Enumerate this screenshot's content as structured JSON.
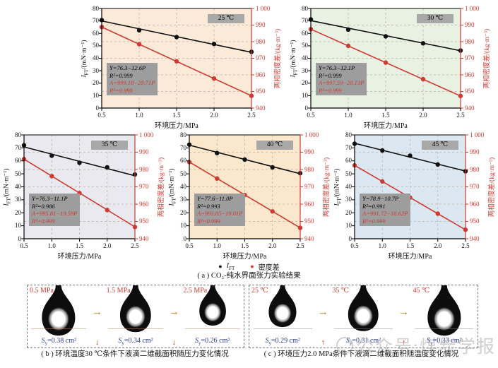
{
  "colors": {
    "red": "#cf3a32",
    "black": "#111111",
    "box_gray": "#9d9d9d",
    "badge_gray": "#a8a8a8",
    "grid": "#bdb3a6",
    "blue": "#2b3a8f",
    "orange_arrow": "#e0761f"
  },
  "axes": {
    "xlabel": "环境压力/MPa",
    "ylabel_left_sym": "I",
    "ylabel_left_sub": "FT",
    "ylabel_left_rest": "/(mN·m⁻¹)",
    "ylabel_right": "两相密度差/(kg·m⁻³)",
    "x_ticks": [
      "0.5",
      "1.0",
      "1.5",
      "2.0",
      "2.5"
    ],
    "y_left_ticks": [
      "0",
      "10",
      "20",
      "30",
      "40",
      "50",
      "60",
      "70",
      "80"
    ],
    "y_right_ticks": [
      "940",
      "950",
      "960",
      "970",
      "980",
      "990",
      "1 000"
    ],
    "x_range": [
      0.5,
      2.5
    ],
    "y_left_range": [
      0,
      80
    ],
    "y_right_range": [
      940,
      1000
    ]
  },
  "legend": {
    "marker": "●",
    "series1_sym": "I",
    "series1_sub": "FT",
    "series2": "密度差"
  },
  "chart_data": [
    {
      "type": "line",
      "temperature": "25 ℃",
      "bg": "#fcead9",
      "x": [
        0.5,
        1.0,
        1.5,
        2.0,
        2.5
      ],
      "series": [
        {
          "name": "IFT",
          "axis": "left",
          "color": "#111111",
          "values": [
            70.7,
            62.5,
            57.0,
            51.5,
            45.2
          ],
          "fit": {
            "intercept": 76.3,
            "slope": -12.6
          },
          "eq": "Y=76.3−12.6P",
          "r2": "R²=0.999"
        },
        {
          "name": "密度差",
          "axis": "right",
          "color": "#cf3a32",
          "values": [
            988.8,
            978.5,
            968.2,
            957.8,
            947.4
          ],
          "fit": {
            "intercept": 999.18,
            "slope": -20.71
          },
          "eq": "A=999.18−20.71P",
          "r2": "R²=0.998"
        }
      ]
    },
    {
      "type": "line",
      "temperature": "30 ℃",
      "bg": "#e9f2e2",
      "x": [
        0.5,
        1.0,
        1.5,
        2.0,
        2.5
      ],
      "series": [
        {
          "name": "IFT",
          "axis": "left",
          "color": "#111111",
          "values": [
            71.2,
            63.0,
            57.6,
            52.0,
            46.2
          ],
          "fit": {
            "intercept": 76.3,
            "slope": -12.1
          },
          "eq": "Y=76.3−12.1P",
          "r2": "R²=0.999"
        },
        {
          "name": "密度差",
          "axis": "right",
          "color": "#cf3a32",
          "values": [
            987.5,
            977.5,
            967.4,
            957.4,
            947.3
          ],
          "fit": {
            "intercept": 997.59,
            "slope": -20.13
          },
          "eq": "A=997.59−20.13P",
          "r2": "R²=0.999"
        }
      ]
    },
    {
      "type": "line",
      "temperature": "35 ℃",
      "bg": "#eae9ef",
      "x": [
        0.5,
        1.0,
        1.5,
        2.0,
        2.5
      ],
      "series": [
        {
          "name": "IFT",
          "axis": "left",
          "color": "#111111",
          "values": [
            72.0,
            64.0,
            58.5,
            55.0,
            49.5
          ],
          "fit": {
            "intercept": 76.3,
            "slope": -11.1
          },
          "eq": "Y=76.3−11.1P",
          "r2": "R²=0.986"
        },
        {
          "name": "密度差",
          "axis": "right",
          "color": "#cf3a32",
          "values": [
            986.0,
            976.2,
            966.4,
            956.6,
            946.8
          ],
          "fit": {
            "intercept": 995.81,
            "slope": -19.59
          },
          "eq": "A=995.81−19.59P",
          "r2": "R²=0.999"
        }
      ]
    },
    {
      "type": "line",
      "temperature": "40 ℃",
      "bg": "#fbe7cc",
      "x": [
        0.5,
        1.0,
        1.5,
        2.0,
        2.5
      ],
      "series": [
        {
          "name": "IFT",
          "axis": "left",
          "color": "#111111",
          "values": [
            72.5,
            66.0,
            61.0,
            55.0,
            50.5
          ],
          "fit": {
            "intercept": 77.6,
            "slope": -11.0
          },
          "eq": "Y=77.6−11.0P",
          "r2": "R²=0.993"
        },
        {
          "name": "密度差",
          "axis": "right",
          "color": "#cf3a32",
          "values": [
            984.3,
            974.8,
            965.3,
            955.8,
            946.3
          ],
          "fit": {
            "intercept": 993.85,
            "slope": -19.01
          },
          "eq": "A=993.85−19.01P",
          "r2": "R²=0.999"
        }
      ]
    },
    {
      "type": "line",
      "temperature": "45 ℃",
      "bg": "#dce8f1",
      "x": [
        0.5,
        1.0,
        1.5,
        2.0,
        2.5
      ],
      "series": [
        {
          "name": "IFT",
          "axis": "left",
          "color": "#111111",
          "values": [
            73.2,
            68.0,
            64.0,
            57.2,
            52.0
          ],
          "fit": {
            "intercept": 78.9,
            "slope": -10.7
          },
          "eq": "Y=78.9−10.7P",
          "r2": "R²=0.991"
        },
        {
          "name": "密度差",
          "axis": "right",
          "color": "#cf3a32",
          "values": [
            982.4,
            973.1,
            963.8,
            954.5,
            945.2
          ],
          "fit": {
            "intercept": 991.72,
            "slope": -18.62
          },
          "eq": "A=991.72−18.62P",
          "r2": "R²=0.999"
        }
      ]
    }
  ],
  "figure": {
    "caption_a": "( a ) CO₂-纯水界面张力实验结果",
    "caption_b": "( b ) 环境温度30 ℃条件下液滴二维截面积随压力变化情况",
    "caption_c": "( c ) 环境压力2.0 MPa条件下液滴二维截面积随温度变化情况",
    "watermark": "公众号:煤炭学报"
  },
  "panels": {
    "s_symbol": "S",
    "s_sub": "y",
    "b": {
      "between_arrow": "→",
      "trend_arrow": "↓",
      "items": [
        {
          "label": "0.5 MPa",
          "area": "=0.38 cm²",
          "size": "1.0"
        },
        {
          "label": "1.5 MPa",
          "area": "=0.34 cm²",
          "size": "0.93"
        },
        {
          "label": "2.5 MPa",
          "area": "=0.26 cm²",
          "size": "0.80"
        }
      ]
    },
    "c": {
      "between_arrow": "→",
      "trend_arrow": "↑",
      "items": [
        {
          "label": "25 ℃",
          "area": "=0.29 cm²",
          "size": "0.83"
        },
        {
          "label": "35 ℃",
          "area": "=0.31 cm²",
          "size": "0.91"
        },
        {
          "label": "45 ℃",
          "area": "=0.33 cm²",
          "size": "1.0"
        }
      ]
    }
  }
}
